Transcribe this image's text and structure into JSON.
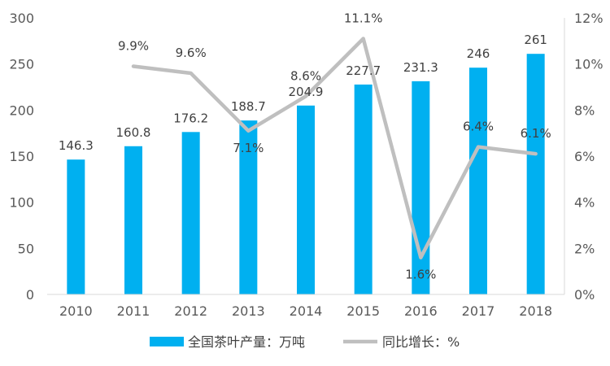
{
  "chart_data": {
    "type": "bar",
    "categories": [
      "2010",
      "2011",
      "2012",
      "2013",
      "2014",
      "2015",
      "2016",
      "2017",
      "2018"
    ],
    "series": [
      {
        "name": "全国茶叶产量：万吨",
        "type": "bar",
        "axis": "left",
        "values": [
          146.3,
          160.8,
          176.2,
          188.7,
          204.9,
          227.7,
          231.3,
          246,
          261
        ],
        "labels": [
          "146.3",
          "160.8",
          "176.2",
          "188.7",
          "204.9",
          "227.7",
          "231.3",
          "246",
          "261"
        ],
        "color": "#00B0F0"
      },
      {
        "name": "同比增长：%",
        "type": "line",
        "axis": "right",
        "values": [
          null,
          9.9,
          9.6,
          7.1,
          8.6,
          11.1,
          1.6,
          6.4,
          6.1
        ],
        "labels": [
          "",
          "9.9%",
          "9.6%",
          "7.1%",
          "8.6%",
          "11.1%",
          "1.6%",
          "6.4%",
          "6.1%"
        ],
        "color": "#BFBFBF"
      }
    ],
    "y_left": {
      "min": 0,
      "max": 300,
      "ticks": [
        "0",
        "50",
        "100",
        "150",
        "200",
        "250",
        "300"
      ]
    },
    "y_right": {
      "min": 0,
      "max": 12,
      "ticks": [
        "0%",
        "2%",
        "4%",
        "6%",
        "8%",
        "10%",
        "12%"
      ]
    },
    "grid": false,
    "legend_position": "bottom"
  }
}
